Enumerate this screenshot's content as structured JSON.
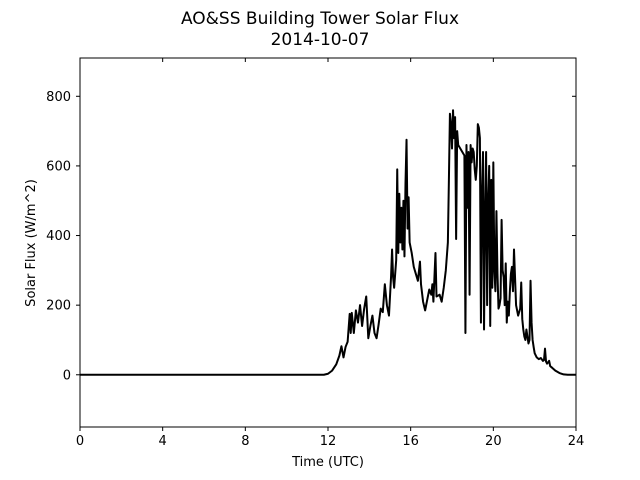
{
  "chart_data": {
    "type": "line",
    "title": "AO&SS Building Tower Solar Flux",
    "subtitle": "2014-10-07",
    "xlabel": "Time (UTC)",
    "ylabel": "Solar Flux (W/m^2)",
    "xlim": [
      0,
      24
    ],
    "ylim": [
      -150,
      910
    ],
    "xticks": [
      0,
      4,
      8,
      12,
      16,
      20,
      24
    ],
    "yticks": [
      0,
      200,
      400,
      600,
      800
    ],
    "grid": false,
    "series": [
      {
        "color": "#000000",
        "points": [
          [
            0,
            0
          ],
          [
            11.8,
            0
          ],
          [
            12.0,
            3
          ],
          [
            12.2,
            12
          ],
          [
            12.4,
            30
          ],
          [
            12.55,
            55
          ],
          [
            12.65,
            82
          ],
          [
            12.75,
            50
          ],
          [
            12.85,
            80
          ],
          [
            12.95,
            95
          ],
          [
            13.05,
            175
          ],
          [
            13.1,
            120
          ],
          [
            13.15,
            178
          ],
          [
            13.25,
            120
          ],
          [
            13.35,
            185
          ],
          [
            13.45,
            150
          ],
          [
            13.55,
            200
          ],
          [
            13.65,
            140
          ],
          [
            13.75,
            190
          ],
          [
            13.85,
            225
          ],
          [
            13.95,
            105
          ],
          [
            14.05,
            140
          ],
          [
            14.15,
            170
          ],
          [
            14.25,
            120
          ],
          [
            14.35,
            105
          ],
          [
            14.45,
            145
          ],
          [
            14.55,
            190
          ],
          [
            14.65,
            180
          ],
          [
            14.75,
            260
          ],
          [
            14.85,
            200
          ],
          [
            14.95,
            170
          ],
          [
            15.05,
            280
          ],
          [
            15.1,
            360
          ],
          [
            15.15,
            280
          ],
          [
            15.2,
            250
          ],
          [
            15.3,
            330
          ],
          [
            15.35,
            590
          ],
          [
            15.4,
            350
          ],
          [
            15.45,
            520
          ],
          [
            15.5,
            380
          ],
          [
            15.55,
            480
          ],
          [
            15.6,
            360
          ],
          [
            15.65,
            500
          ],
          [
            15.7,
            340
          ],
          [
            15.75,
            550
          ],
          [
            15.8,
            675
          ],
          [
            15.85,
            420
          ],
          [
            15.9,
            510
          ],
          [
            15.95,
            380
          ],
          [
            16.05,
            350
          ],
          [
            16.15,
            310
          ],
          [
            16.25,
            290
          ],
          [
            16.35,
            270
          ],
          [
            16.45,
            325
          ],
          [
            16.5,
            260
          ],
          [
            16.6,
            210
          ],
          [
            16.7,
            185
          ],
          [
            16.8,
            215
          ],
          [
            16.9,
            245
          ],
          [
            17.0,
            230
          ],
          [
            17.05,
            260
          ],
          [
            17.1,
            210
          ],
          [
            17.2,
            350
          ],
          [
            17.25,
            225
          ],
          [
            17.4,
            230
          ],
          [
            17.5,
            210
          ],
          [
            17.6,
            250
          ],
          [
            17.7,
            300
          ],
          [
            17.8,
            380
          ],
          [
            17.85,
            560
          ],
          [
            17.9,
            750
          ],
          [
            17.95,
            720
          ],
          [
            18.0,
            650
          ],
          [
            18.05,
            760
          ],
          [
            18.1,
            680
          ],
          [
            18.15,
            740
          ],
          [
            18.2,
            390
          ],
          [
            18.25,
            700
          ],
          [
            18.3,
            660
          ],
          [
            18.4,
            650
          ],
          [
            18.5,
            640
          ],
          [
            18.6,
            630
          ],
          [
            18.65,
            120
          ],
          [
            18.7,
            660
          ],
          [
            18.75,
            480
          ],
          [
            18.8,
            640
          ],
          [
            18.85,
            230
          ],
          [
            18.9,
            660
          ],
          [
            18.95,
            610
          ],
          [
            19.0,
            650
          ],
          [
            19.05,
            640
          ],
          [
            19.1,
            590
          ],
          [
            19.15,
            560
          ],
          [
            19.2,
            600
          ],
          [
            19.25,
            720
          ],
          [
            19.3,
            710
          ],
          [
            19.35,
            680
          ],
          [
            19.4,
            150
          ],
          [
            19.45,
            520
          ],
          [
            19.5,
            640
          ],
          [
            19.55,
            130
          ],
          [
            19.6,
            460
          ],
          [
            19.65,
            640
          ],
          [
            19.7,
            200
          ],
          [
            19.75,
            500
          ],
          [
            19.8,
            600
          ],
          [
            19.85,
            140
          ],
          [
            19.9,
            560
          ],
          [
            19.95,
            250
          ],
          [
            20.0,
            610
          ],
          [
            20.05,
            300
          ],
          [
            20.1,
            240
          ],
          [
            20.15,
            470
          ],
          [
            20.2,
            290
          ],
          [
            20.25,
            190
          ],
          [
            20.3,
            200
          ],
          [
            20.35,
            220
          ],
          [
            20.4,
            445
          ],
          [
            20.45,
            300
          ],
          [
            20.5,
            280
          ],
          [
            20.55,
            200
          ],
          [
            20.6,
            320
          ],
          [
            20.65,
            150
          ],
          [
            20.7,
            210
          ],
          [
            20.75,
            170
          ],
          [
            20.8,
            240
          ],
          [
            20.85,
            290
          ],
          [
            20.9,
            310
          ],
          [
            20.95,
            240
          ],
          [
            21.0,
            360
          ],
          [
            21.1,
            200
          ],
          [
            21.2,
            170
          ],
          [
            21.3,
            190
          ],
          [
            21.35,
            265
          ],
          [
            21.4,
            160
          ],
          [
            21.45,
            130
          ],
          [
            21.5,
            110
          ],
          [
            21.55,
            100
          ],
          [
            21.6,
            130
          ],
          [
            21.65,
            110
          ],
          [
            21.7,
            90
          ],
          [
            21.75,
            100
          ],
          [
            21.8,
            270
          ],
          [
            21.85,
            150
          ],
          [
            21.9,
            100
          ],
          [
            21.95,
            80
          ],
          [
            22.0,
            62
          ],
          [
            22.1,
            50
          ],
          [
            22.2,
            45
          ],
          [
            22.3,
            48
          ],
          [
            22.4,
            40
          ],
          [
            22.45,
            42
          ],
          [
            22.5,
            75
          ],
          [
            22.55,
            38
          ],
          [
            22.6,
            32
          ],
          [
            22.7,
            40
          ],
          [
            22.75,
            25
          ],
          [
            22.85,
            20
          ],
          [
            23.0,
            12
          ],
          [
            23.2,
            5
          ],
          [
            23.4,
            1
          ],
          [
            23.6,
            0
          ],
          [
            24,
            0
          ]
        ]
      }
    ]
  }
}
